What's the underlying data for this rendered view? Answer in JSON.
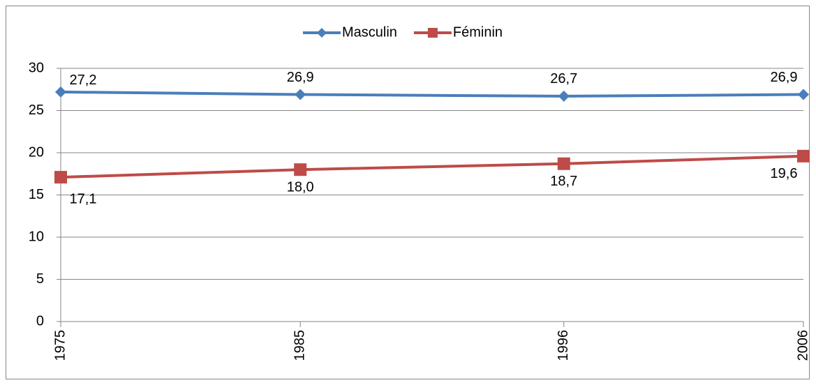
{
  "chart_data": {
    "type": "line",
    "x": [
      1975,
      1985,
      1996,
      2006
    ],
    "series": [
      {
        "name": "Masculin",
        "color": "#4a7ebb",
        "marker": "diamond",
        "values": [
          27.2,
          26.9,
          26.7,
          26.9
        ],
        "value_labels": [
          "27,2",
          "26,9",
          "26,7",
          "26,9"
        ]
      },
      {
        "name": "Féminin",
        "color": "#be4b48",
        "marker": "square",
        "values": [
          17.1,
          18.0,
          18.7,
          19.6
        ],
        "value_labels": [
          "17,1",
          "18,0",
          "18,7",
          "19,6"
        ]
      }
    ],
    "xlim": [
      1975,
      2006
    ],
    "xticks": [
      1975,
      1985,
      1996,
      2006
    ],
    "ylim": [
      0,
      30
    ],
    "yticks": [
      0,
      5,
      10,
      15,
      20,
      25,
      30
    ],
    "grid": true,
    "legend": "top"
  }
}
